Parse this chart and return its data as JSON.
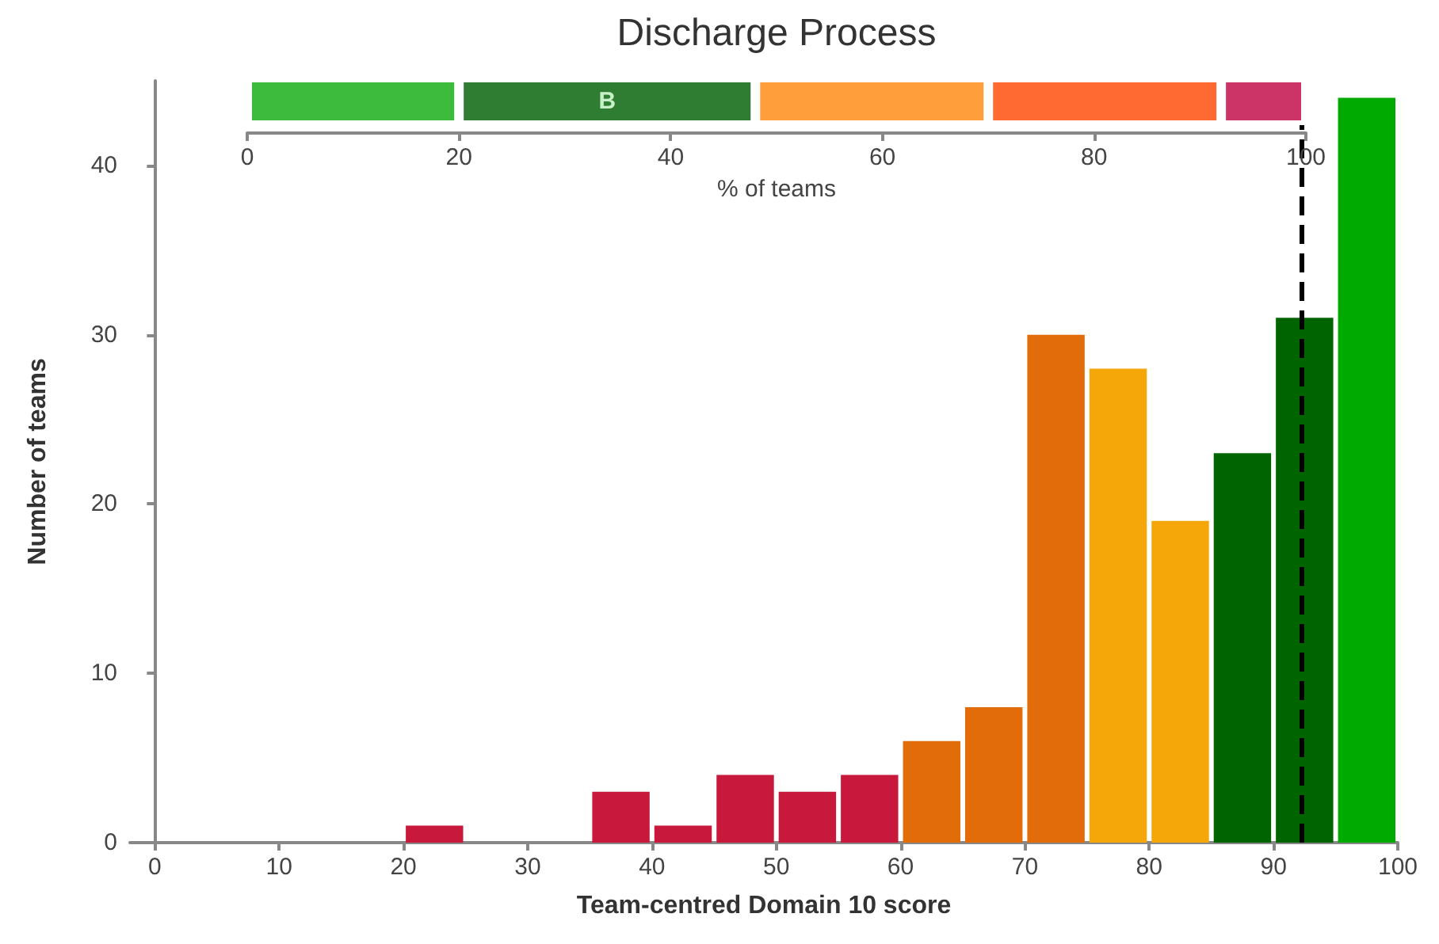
{
  "chart_data": [
    {
      "type": "bar",
      "title": "Discharge Process",
      "xlabel": "% of teams",
      "orientation": "horizontal",
      "stacked": true,
      "categories": [
        null
      ],
      "xlim": [
        0,
        100
      ],
      "xticks": [
        0,
        20,
        40,
        60,
        80,
        100
      ],
      "tick_labels": "x",
      "grid": false,
      "series": [
        {
          "color": "#3dbb3d",
          "values": [
            20
          ]
        },
        {
          "color": "#2e7d32",
          "values": [
            28
          ],
          "value_labels": [
            "B"
          ]
        },
        {
          "color": "#ff9e3a",
          "values": [
            22
          ]
        },
        {
          "color": "#ff6a33",
          "values": [
            22
          ]
        },
        {
          "color": "#cc3366",
          "values": [
            8
          ]
        }
      ]
    },
    {
      "type": "histogram",
      "xlabel": "Team-centred Domain 10 score",
      "ylabel": "Number of teams",
      "bins": [
        0,
        5,
        10,
        15,
        20,
        25,
        30,
        35,
        40,
        45,
        50,
        55,
        60,
        65,
        70,
        75,
        80,
        85,
        90,
        95,
        100
      ],
      "values": [
        0,
        0,
        0,
        0,
        1,
        0,
        0,
        3,
        1,
        4,
        3,
        4,
        6,
        8,
        30,
        28,
        19,
        23,
        31,
        44
      ],
      "colors": [
        "#c8193c",
        "#c8193c",
        "#c8193c",
        "#c8193c",
        "#c8193c",
        "#c8193c",
        "#c8193c",
        "#c8193c",
        "#c8193c",
        "#c8193c",
        "#c8193c",
        "#c8193c",
        "#e36c0a",
        "#e36c0a",
        "#e36c0a",
        "#f5a70a",
        "#f5a70a",
        "#006400",
        "#006400",
        "#00aa00"
      ],
      "xlim": [
        -2,
        100
      ],
      "xticks": [
        0,
        10,
        20,
        30,
        40,
        50,
        60,
        70,
        80,
        90,
        100
      ],
      "ylim": [
        0,
        45
      ],
      "yticks": [
        0,
        10,
        20,
        30,
        40
      ],
      "grid": false,
      "ref_lines": [
        {
          "axis": "x",
          "value": 92.3,
          "color": "#000000",
          "line_style": "dashed"
        }
      ]
    }
  ]
}
